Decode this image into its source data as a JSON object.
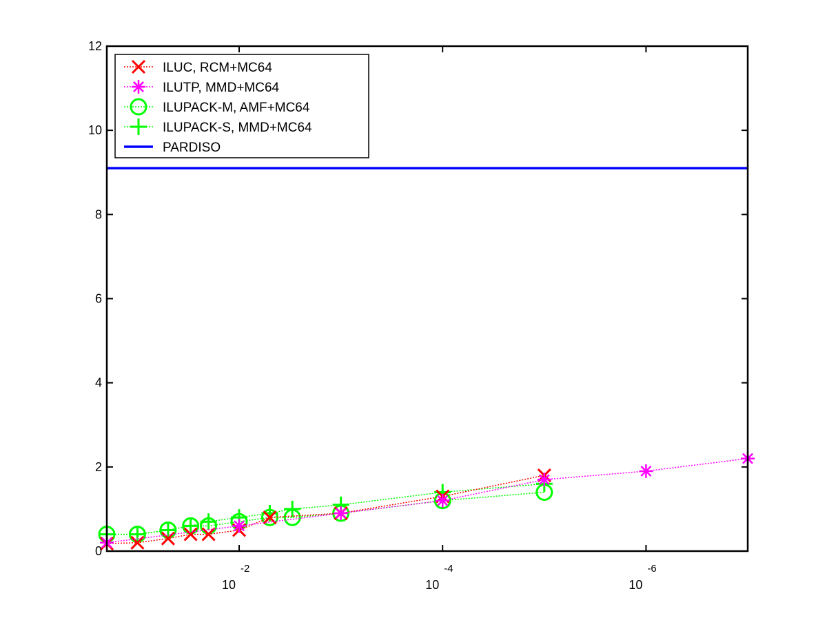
{
  "chart_data": {
    "type": "line",
    "title": "",
    "xlabel": "",
    "ylabel": "",
    "x_scale": "log",
    "x_reversed": true,
    "xlim": [
      0.2,
      1e-07
    ],
    "ylim": [
      0,
      12
    ],
    "yticks": [
      0,
      2,
      4,
      6,
      8,
      10,
      12
    ],
    "xticks": [
      {
        "value": 0.01,
        "base": "10",
        "exponent": "-2"
      },
      {
        "value": 0.0001,
        "base": "10",
        "exponent": "-4"
      },
      {
        "value": 1e-06,
        "base": "10",
        "exponent": "-6"
      }
    ],
    "grid": false,
    "legend_position": "top-left",
    "series": [
      {
        "name": "ILUC, RCM+MC64",
        "color": "#ff0000",
        "marker": "x",
        "points": [
          [
            0.2,
            0.18
          ],
          [
            0.1,
            0.2
          ],
          [
            0.05,
            0.3
          ],
          [
            0.03,
            0.4
          ],
          [
            0.02,
            0.4
          ],
          [
            0.01,
            0.5
          ],
          [
            0.005,
            0.8
          ],
          [
            0.001,
            0.9
          ],
          [
            0.0001,
            1.3
          ],
          [
            1e-05,
            1.8
          ]
        ]
      },
      {
        "name": "ILUTP, MMD+MC64",
        "color": "#ff00ff",
        "marker": "asterisk",
        "points": [
          [
            0.2,
            0.2
          ],
          [
            0.01,
            0.6
          ],
          [
            0.001,
            0.9
          ],
          [
            0.0001,
            1.2
          ],
          [
            1e-05,
            1.7
          ],
          [
            1e-06,
            1.9
          ],
          [
            1e-07,
            2.2
          ]
        ]
      },
      {
        "name": "ILUPACK-M, AMF+MC64",
        "color": "#00ff00",
        "marker": "circle",
        "points": [
          [
            0.2,
            0.4
          ],
          [
            0.1,
            0.4
          ],
          [
            0.05,
            0.5
          ],
          [
            0.03,
            0.6
          ],
          [
            0.02,
            0.6
          ],
          [
            0.01,
            0.7
          ],
          [
            0.005,
            0.8
          ],
          [
            0.003,
            0.8
          ],
          [
            0.001,
            0.9
          ],
          [
            0.0001,
            1.2
          ],
          [
            1e-05,
            1.4
          ]
        ]
      },
      {
        "name": "ILUPACK-S, MMD+MC64",
        "color": "#00ff00",
        "marker": "plus",
        "points": [
          [
            0.2,
            0.4
          ],
          [
            0.1,
            0.4
          ],
          [
            0.05,
            0.5
          ],
          [
            0.03,
            0.6
          ],
          [
            0.02,
            0.7
          ],
          [
            0.01,
            0.8
          ],
          [
            0.005,
            0.9
          ],
          [
            0.003,
            1.0
          ],
          [
            0.001,
            1.1
          ],
          [
            0.0001,
            1.4
          ],
          [
            1e-05,
            1.6
          ]
        ]
      },
      {
        "name": "PARDISO",
        "color": "#0000ff",
        "marker": "none",
        "points": [
          [
            0.2,
            9.1
          ],
          [
            1e-07,
            9.1
          ]
        ]
      }
    ]
  }
}
